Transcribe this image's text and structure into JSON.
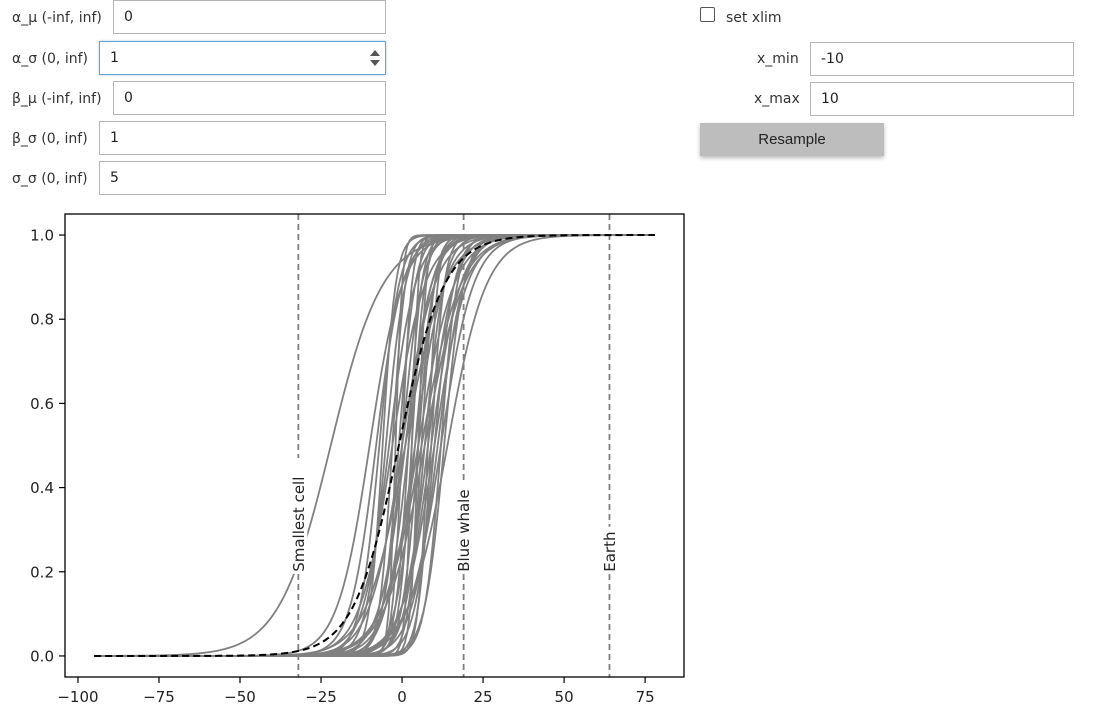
{
  "controls": {
    "fields": [
      {
        "label": "α_μ (-inf, inf)",
        "value": "0"
      },
      {
        "label": "α_σ (0, inf)",
        "value": "1"
      },
      {
        "label": "β_μ (-inf, inf)",
        "value": "0"
      },
      {
        "label": "β_σ (0, inf)",
        "value": "1"
      },
      {
        "label": "σ_σ (0, inf)",
        "value": "5"
      }
    ],
    "xlim": {
      "checkbox_label": "set xlim",
      "checked": false,
      "x_min_label": "x_min",
      "x_min_value": "-10",
      "x_max_label": "x_max",
      "x_max_value": "10"
    },
    "resample_label": "Resample"
  },
  "chart_data": {
    "type": "line",
    "title": "",
    "xlabel": "",
    "ylabel": "",
    "xlim": [
      -104,
      87
    ],
    "ylim": [
      -0.05,
      1.05
    ],
    "xticks": [
      -100,
      -75,
      -50,
      -25,
      0,
      25,
      50,
      75
    ],
    "yticks": [
      0.0,
      0.2,
      0.4,
      0.6,
      0.8,
      1.0
    ],
    "xtick_labels": [
      "−100",
      "−75",
      "−50",
      "−25",
      "0",
      "25",
      "50",
      "75"
    ],
    "ytick_labels": [
      "0.0",
      "0.2",
      "0.4",
      "0.6",
      "0.8",
      "1.0"
    ],
    "x_range": [
      -95,
      78
    ],
    "sample_curve_color": "#808080",
    "mean_curve_color": "#000000",
    "mean_curve": {
      "center": -1,
      "scale": 7
    },
    "sample_curves": [
      {
        "center": -22,
        "scale": 8
      },
      {
        "center": 3,
        "scale": 2
      },
      {
        "center": 8,
        "scale": 4
      },
      {
        "center": -5,
        "scale": 3
      },
      {
        "center": 12,
        "scale": 5
      },
      {
        "center": -8,
        "scale": 4
      },
      {
        "center": 5,
        "scale": 2.5
      },
      {
        "center": 0,
        "scale": 1.5
      },
      {
        "center": 10,
        "scale": 3
      },
      {
        "center": -3,
        "scale": 5
      },
      {
        "center": 6,
        "scale": 6
      },
      {
        "center": 2,
        "scale": 3.5
      },
      {
        "center": -6,
        "scale": 2
      },
      {
        "center": 9,
        "scale": 2
      },
      {
        "center": 4,
        "scale": 4.5
      },
      {
        "center": -1,
        "scale": 2.5
      },
      {
        "center": 13,
        "scale": 3
      },
      {
        "center": 7,
        "scale": 3
      },
      {
        "center": -4,
        "scale": 4
      },
      {
        "center": 1,
        "scale": 6
      },
      {
        "center": 11,
        "scale": 4
      },
      {
        "center": 3,
        "scale": 1
      },
      {
        "center": -10,
        "scale": 5
      },
      {
        "center": 5,
        "scale": 5.5
      },
      {
        "center": 0,
        "scale": 3
      },
      {
        "center": 8,
        "scale": 1.5
      },
      {
        "center": -2,
        "scale": 1
      },
      {
        "center": 6,
        "scale": 2
      },
      {
        "center": 14,
        "scale": 6
      },
      {
        "center": 2,
        "scale": 2
      },
      {
        "center": -7,
        "scale": 3
      },
      {
        "center": 10,
        "scale": 5
      },
      {
        "center": 4,
        "scale": 3
      },
      {
        "center": 1,
        "scale": 4
      },
      {
        "center": 7,
        "scale": 6
      },
      {
        "center": -3,
        "scale": 2
      },
      {
        "center": 12,
        "scale": 2.5
      },
      {
        "center": 9,
        "scale": 4.5
      },
      {
        "center": 0,
        "scale": 5
      },
      {
        "center": 5,
        "scale": 1.2
      }
    ],
    "reference_lines": [
      {
        "x": -32,
        "label": "Smallest cell"
      },
      {
        "x": 19,
        "label": "Blue whale"
      },
      {
        "x": 64,
        "label": "Earth"
      }
    ]
  }
}
